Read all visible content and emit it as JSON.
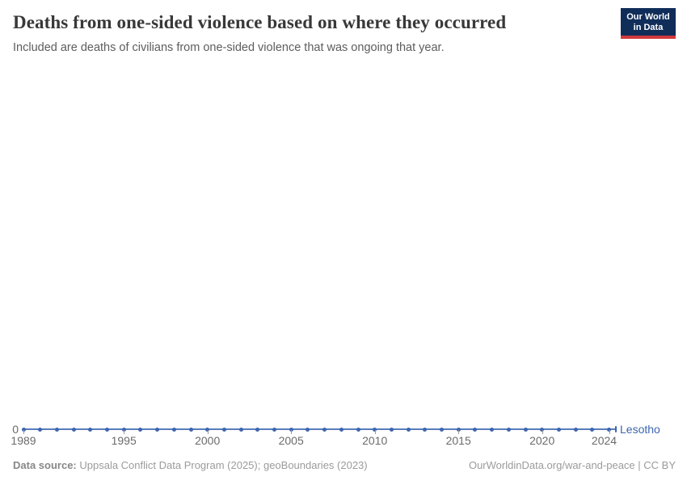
{
  "header": {
    "title": "Deaths from one-sided violence based on where they occurred",
    "subtitle": "Included are deaths of civilians from one-sided violence that was ongoing that year."
  },
  "logo": {
    "line1": "Our World",
    "line2": "in Data",
    "background_color": "#102d59",
    "bar_color": "#d0393c"
  },
  "chart_data": {
    "type": "line",
    "title": "Deaths from one-sided violence based on where they occurred",
    "subtitle": "Included are deaths of civilians from one-sided violence that was ongoing that year.",
    "xlabel": "",
    "ylabel": "",
    "x": [
      1989,
      1990,
      1991,
      1992,
      1993,
      1994,
      1995,
      1996,
      1997,
      1998,
      1999,
      2000,
      2001,
      2002,
      2003,
      2004,
      2005,
      2006,
      2007,
      2008,
      2009,
      2010,
      2011,
      2012,
      2013,
      2014,
      2015,
      2016,
      2017,
      2018,
      2019,
      2020,
      2021,
      2022,
      2023,
      2024
    ],
    "series": [
      {
        "name": "Lesotho",
        "values": [
          0,
          0,
          0,
          0,
          0,
          0,
          0,
          0,
          0,
          0,
          0,
          0,
          0,
          0,
          0,
          0,
          0,
          0,
          0,
          0,
          0,
          0,
          0,
          0,
          0,
          0,
          0,
          0,
          0,
          0,
          0,
          0,
          0,
          0,
          0,
          0
        ]
      }
    ],
    "x_ticks": [
      "1989",
      "1995",
      "2000",
      "2005",
      "2010",
      "2015",
      "2020",
      "2024"
    ],
    "y_ticks": [
      "0"
    ],
    "xlim": [
      1989,
      2024
    ],
    "grid": false,
    "legend": "entity label at end of line",
    "point_markers": true
  },
  "colors": {
    "line": "#577cba",
    "marker": "#3d66ae",
    "entity_label": "#3d66ae",
    "tick_label_gray": "#6b6b6b"
  },
  "footer": {
    "source_label": "Data source:",
    "source_text": " Uppsala Conflict Data Program (2025); geoBoundaries (2023)",
    "right_text": "OurWorldinData.org/war-and-peace | CC BY"
  }
}
